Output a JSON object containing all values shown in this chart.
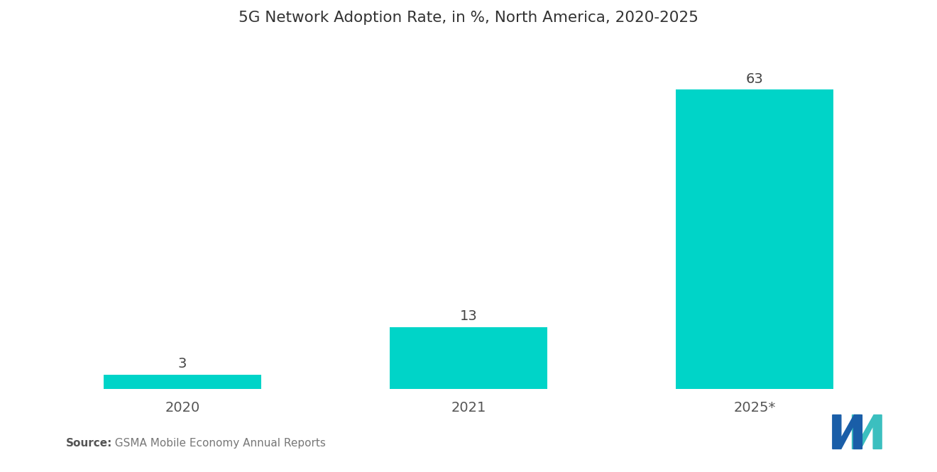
{
  "title": "5G Network Adoption Rate, in %, North America, 2020-2025",
  "categories": [
    "2020",
    "2021",
    "2025*"
  ],
  "values": [
    3,
    13,
    63
  ],
  "bar_color": "#00D4C8",
  "background_color": "#ffffff",
  "title_fontsize": 15.5,
  "label_fontsize": 14,
  "tick_fontsize": 14,
  "source_bold": "Source:",
  "source_rest": "  GSMA Mobile Economy Annual Reports",
  "ylim": [
    0,
    72
  ],
  "bar_width": 0.55,
  "logo_left_color": "#1a5ea8",
  "logo_right_color": "#3bbfbf"
}
